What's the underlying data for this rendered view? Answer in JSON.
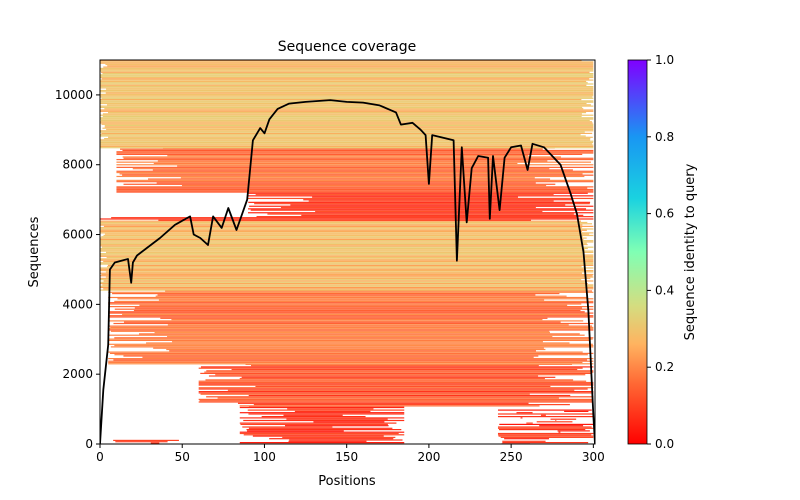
{
  "chart_data": {
    "type": "heatmap",
    "title": "Sequence coverage",
    "xlabel": "Positions",
    "ylabel": "Sequences",
    "xlim": [
      0,
      301
    ],
    "ylim": [
      0,
      11000
    ],
    "xticks": [
      0,
      50,
      100,
      150,
      200,
      250,
      300
    ],
    "yticks": [
      0,
      2000,
      4000,
      6000,
      8000,
      10000
    ],
    "colorbar": {
      "label": "Sequence identity to query",
      "range": [
        0,
        1
      ],
      "ticks": [
        "0.0",
        "0.2",
        "0.4",
        "0.6",
        "0.8",
        "1.0"
      ],
      "colormap": "rainbow_r",
      "stops": [
        "#ff0000",
        "#ff6a35",
        "#ffb360",
        "#d4dd80",
        "#80ffb4",
        "#1996f3",
        "#8000ff"
      ]
    },
    "band_colors": {
      "low_identity": "#ff3a1e",
      "mid_low": "#ff7a40",
      "mid": "#ff9a50",
      "high": "#f5c06a",
      "higher": "#e8cc72"
    },
    "bands": [
      {
        "seq_from": 0,
        "seq_to": 1100,
        "pos_from": 85,
        "pos_to": 185,
        "identity": 0.08
      },
      {
        "seq_from": 0,
        "seq_to": 1100,
        "pos_from": 242,
        "pos_to": 300,
        "identity": 0.08
      },
      {
        "seq_from": 0,
        "seq_to": 120,
        "pos_from": 8,
        "pos_to": 48,
        "identity": 0.08
      },
      {
        "seq_from": 1100,
        "seq_to": 2300,
        "pos_from": 60,
        "pos_to": 300,
        "identity": 0.12
      },
      {
        "seq_from": 2300,
        "seq_to": 4400,
        "pos_from": 5,
        "pos_to": 300,
        "identity": 0.17
      },
      {
        "seq_from": 4400,
        "seq_to": 6400,
        "pos_from": 0,
        "pos_to": 300,
        "identity": 0.26
      },
      {
        "seq_from": 6400,
        "seq_to": 6500,
        "pos_from": 0,
        "pos_to": 300,
        "identity": 0.1
      },
      {
        "seq_from": 6500,
        "seq_to": 7200,
        "pos_from": 90,
        "pos_to": 300,
        "identity": 0.1
      },
      {
        "seq_from": 7200,
        "seq_to": 8500,
        "pos_from": 10,
        "pos_to": 300,
        "identity": 0.17
      },
      {
        "seq_from": 8500,
        "seq_to": 11000,
        "pos_from": 0,
        "pos_to": 300,
        "identity": 0.27
      }
    ],
    "coverage_line": {
      "color": "#000000",
      "x": [
        0,
        2,
        5,
        6,
        9,
        17,
        19,
        20,
        22.5,
        36.5,
        45.6,
        54.8,
        57,
        61,
        65.7,
        68.8,
        74,
        78,
        83,
        89.5,
        93,
        97.4,
        100,
        103,
        108,
        115,
        125,
        140,
        150,
        160,
        170,
        180,
        183,
        190,
        195,
        198,
        200,
        202,
        215,
        217,
        220,
        223,
        226,
        230,
        236,
        237,
        239,
        243,
        246,
        250,
        256,
        260,
        263,
        270,
        280,
        286,
        290,
        294,
        297,
        300,
        301
      ],
      "y": [
        0,
        1550,
        2840,
        5000,
        5200,
        5300,
        4620,
        5200,
        5400,
        5900,
        6280,
        6520,
        6000,
        5900,
        5700,
        6520,
        6190,
        6760,
        6130,
        7000,
        8700,
        9050,
        8900,
        9300,
        9600,
        9750,
        9800,
        9850,
        9800,
        9780,
        9700,
        9500,
        9150,
        9200,
        9000,
        8850,
        7450,
        8850,
        8700,
        5250,
        8500,
        6350,
        7900,
        8250,
        8200,
        6450,
        8250,
        6700,
        8200,
        8500,
        8550,
        7850,
        8600,
        8500,
        8000,
        7200,
        6600,
        5500,
        3800,
        800,
        0
      ]
    }
  }
}
